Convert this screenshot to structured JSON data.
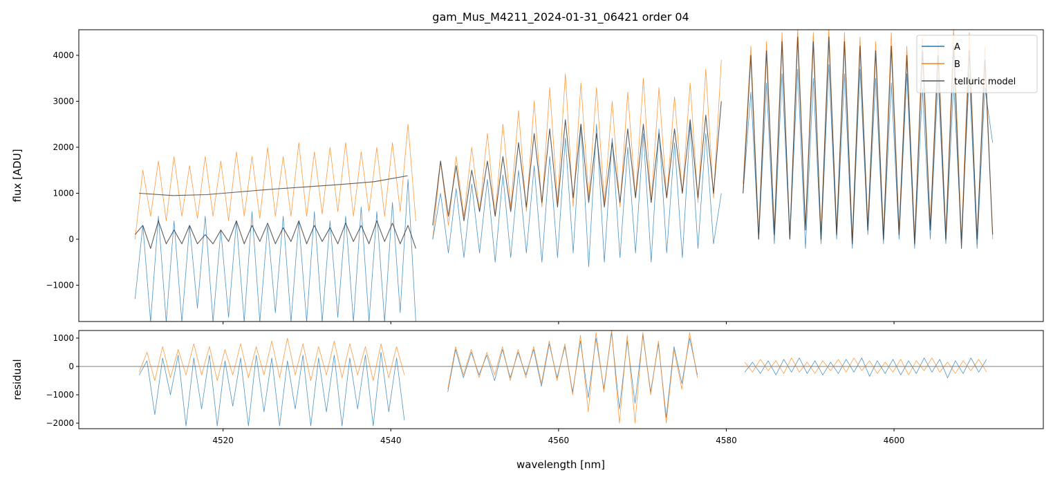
{
  "chart_data": {
    "type": "line",
    "title": "gam_Mus_M4211_2024-01-31_06421  order 04",
    "xlabel": "wavelength [nm]",
    "xlim": [
      4502.8,
      4617.8
    ],
    "xticks": [
      4520,
      4540,
      4560,
      4580,
      4600
    ],
    "colors": {
      "A": "#1f77b4",
      "B": "#ff7f0e",
      "model": "#333333"
    },
    "legend": {
      "placement": "top-right",
      "entries": [
        "A",
        "B",
        "telluric model"
      ]
    },
    "top": {
      "ylabel": "flux [ADU]",
      "ylim": [
        -1790,
        4556
      ],
      "yticks": [
        -1000,
        0,
        1000,
        2000,
        3000,
        4000
      ],
      "series": [
        {
          "name": "B",
          "color": "#ff7f0e",
          "segments": [
            {
              "x0": 4509.5,
              "dx": 0.93,
              "y": [
                0,
                1500,
                500,
                1700,
                400,
                1800,
                500,
                1600,
                450,
                1800,
                500,
                1700,
                400,
                1900,
                500,
                1800,
                450,
                2000,
                500,
                1800,
                500,
                2100,
                500,
                1900,
                550,
                2000,
                600,
                2100,
                500,
                1900,
                600,
                2000,
                500,
                2100,
                600,
                2500,
                400
              ]
            },
            {
              "x0": 4545.0,
              "dx": 0.93,
              "y": [
                0,
                1700,
                300,
                1800,
                500,
                2000,
                600,
                2300,
                500,
                2500,
                700,
                2800,
                600,
                3000,
                700,
                3300,
                800,
                3600,
                700,
                3400,
                900,
                3300,
                800,
                3000,
                700,
                3200,
                900,
                3500,
                800,
                3300,
                900,
                3100,
                1000,
                3400,
                800,
                3700,
                900,
                3900
              ]
            },
            {
              "x0": 4582.0,
              "dx": 0.93,
              "y": [
                1200,
                4200,
                100,
                4300,
                200,
                4500,
                0,
                4600,
                300,
                4500,
                100,
                4600,
                200,
                4500,
                0,
                4400,
                300,
                4300,
                100,
                4500,
                200,
                4200,
                0,
                4400,
                300,
                4300,
                100,
                4600,
                0,
                4500,
                -100,
                4200,
                0
              ]
            }
          ]
        },
        {
          "name": "A",
          "color": "#1f77b4",
          "segments": [
            {
              "x0": 4509.5,
              "dx": 0.93,
              "y": [
                -1300,
                300,
                -1800,
                500,
                -1800,
                400,
                -1800,
                300,
                -1500,
                500,
                -1800,
                200,
                -1700,
                400,
                -1800,
                600,
                -1800,
                300,
                -1600,
                500,
                -1800,
                400,
                -1800,
                600,
                -1800,
                400,
                -1700,
                500,
                -1800,
                700,
                -1800,
                600,
                -1800,
                800,
                -1600,
                1300,
                -1800
              ]
            },
            {
              "x0": 4545.0,
              "dx": 0.93,
              "y": [
                0,
                1000,
                -300,
                1100,
                -400,
                1200,
                -300,
                1300,
                -500,
                1400,
                -400,
                1500,
                -300,
                1600,
                -500,
                1800,
                -400,
                2200,
                -300,
                2500,
                -600,
                2500,
                -500,
                2200,
                -400,
                2000,
                -300,
                2300,
                -500,
                2400,
                -300,
                2100,
                -400,
                2500,
                -200,
                2300,
                -100,
                1000
              ]
            },
            {
              "x0": 4582.0,
              "dx": 0.93,
              "y": [
                1000,
                3200,
                0,
                3400,
                -100,
                3600,
                0,
                3700,
                -200,
                3500,
                -100,
                3800,
                0,
                3600,
                -200,
                3700,
                100,
                3500,
                -100,
                3400,
                0,
                3600,
                -200,
                3300,
                0,
                3500,
                -100,
                3400,
                0,
                3600,
                -200,
                3300,
                2100
              ]
            }
          ]
        },
        {
          "name": "telluric model",
          "color": "#333333",
          "segments": [
            {
              "x0": 4509.5,
              "dx": 0.93,
              "y": [
                100,
                300,
                -200,
                400,
                -100,
                200,
                -100,
                300,
                -100,
                100,
                -100,
                200,
                -50,
                400,
                -100,
                300,
                -50,
                350,
                -100,
                250,
                -50,
                400,
                -100,
                300,
                -50,
                250,
                -100,
                350,
                -50,
                300,
                -100,
                400,
                -50,
                350,
                -100,
                300,
                -200
              ]
            },
            {
              "x0": 4510.0,
              "dx": 4.0,
              "y": [
                1000,
                950,
                970,
                1030,
                1090,
                1140,
                1190,
                1250,
                1380
              ]
            },
            {
              "x0": 4545.0,
              "dx": 0.93,
              "y": [
                300,
                1700,
                500,
                1600,
                400,
                1500,
                600,
                1700,
                500,
                1800,
                600,
                2100,
                700,
                2300,
                800,
                2400,
                700,
                2600,
                900,
                2500,
                800,
                2300,
                700,
                2100,
                800,
                2400,
                900,
                2500,
                800,
                2300,
                900,
                2400,
                1000,
                2600,
                900,
                2700,
                1000,
                3000
              ]
            },
            {
              "x0": 4582.0,
              "dx": 0.93,
              "y": [
                1000,
                4000,
                0,
                4100,
                100,
                4300,
                0,
                4400,
                200,
                4300,
                0,
                4400,
                100,
                4300,
                -100,
                4200,
                200,
                4100,
                0,
                4200,
                100,
                4000,
                -100,
                4100,
                200,
                4000,
                0,
                4200,
                -200,
                4100,
                0,
                3900,
                100
              ]
            }
          ]
        }
      ]
    },
    "bottom": {
      "ylabel": "residual",
      "ylim": [
        -2195,
        1268
      ],
      "yticks": [
        -2000,
        -1000,
        0,
        1000
      ],
      "zero_line": 0,
      "series": [
        {
          "name": "A",
          "color": "#1f77b4",
          "segments": [
            {
              "x0": 4510.0,
              "dx": 0.93,
              "y": [
                -300,
                200,
                -1700,
                300,
                -1000,
                400,
                -2100,
                300,
                -1500,
                400,
                -2100,
                200,
                -1400,
                300,
                -2100,
                400,
                -1600,
                300,
                -2100,
                200,
                -1500,
                400,
                -2100,
                300,
                -1600,
                400,
                -2100,
                300,
                -1500,
                400,
                -2100,
                500,
                -1600,
                300,
                -1900
              ]
            },
            {
              "x0": 4546.8,
              "dx": 0.93,
              "y": [
                -900,
                600,
                -400,
                500,
                -300,
                400,
                -500,
                600,
                -400,
                500,
                -300,
                600,
                -700,
                800,
                -400,
                700,
                -900,
                900,
                -1100,
                1000,
                -800,
                1200,
                -1500,
                900,
                -1300,
                1100,
                -900,
                800,
                -1800,
                700,
                -600,
                1000,
                -300
              ]
            },
            {
              "x0": 4582.2,
              "dx": 0.93,
              "y": [
                -200,
                150,
                -250,
                200,
                -300,
                250,
                -200,
                300,
                -250,
                200,
                -300,
                150,
                -250,
                250,
                -200,
                300,
                -350,
                200,
                -250,
                250,
                -300,
                200,
                -250,
                300,
                -200,
                250,
                -400,
                200,
                -250,
                300,
                -200,
                250
              ]
            }
          ]
        },
        {
          "name": "B",
          "color": "#ff7f0e",
          "segments": [
            {
              "x0": 4510.0,
              "dx": 0.93,
              "y": [
                -200,
                500,
                -500,
                700,
                -400,
                600,
                -300,
                800,
                -300,
                700,
                -500,
                600,
                -300,
                800,
                -400,
                700,
                -300,
                900,
                -400,
                1000,
                -300,
                800,
                -500,
                700,
                -300,
                900,
                -400,
                800,
                -300,
                700,
                -500,
                800,
                -400,
                700,
                -300
              ]
            },
            {
              "x0": 4546.8,
              "dx": 0.93,
              "y": [
                -800,
                700,
                -300,
                600,
                -400,
                500,
                -300,
                700,
                -500,
                600,
                -400,
                700,
                -600,
                900,
                -500,
                800,
                -1000,
                1100,
                -1600,
                1200,
                -900,
                1300,
                -2000,
                1100,
                -2000,
                1200,
                -1000,
                900,
                -2000,
                600,
                -800,
                1200,
                -400
              ]
            },
            {
              "x0": 4582.2,
              "dx": 0.93,
              "y": [
                150,
                -200,
                250,
                -150,
                200,
                -250,
                300,
                -200,
                150,
                -250,
                200,
                -150,
                250,
                -200,
                300,
                -150,
                200,
                -250,
                150,
                -200,
                250,
                -300,
                200,
                -150,
                300,
                -200,
                150,
                -250,
                200,
                -150,
                250,
                -200
              ]
            }
          ]
        }
      ]
    }
  }
}
